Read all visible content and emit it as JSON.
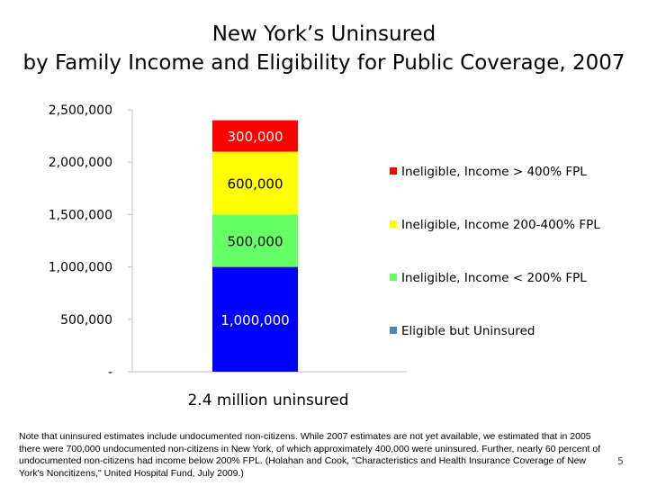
{
  "slide": {
    "title_line1": "New York’s Uninsured",
    "title_line2": "by Family Income and Eligibility for Public Coverage, 2007",
    "note": "Note that uninsured estimates include undocumented non-citizens.  While 2007 estimates are not yet available, we estimated that in 2005 there were 700,000 undocumented non-citizens in New York, of which approximately 400,000 were uninsured.  Further, nearly 60 percent of undocumented non-citizens had income below 200% FPL.  (Holahan and Cook, \"Characteristics and Health Insurance Coverage of New York's Noncitizens,\" United Hospital Fund, July 2009.)",
    "page_number": "5"
  },
  "chart_data": {
    "type": "bar",
    "stacked": true,
    "categories": [
      "2.4 million uninsured"
    ],
    "xlabel": "2.4 million uninsured",
    "ylabel": "",
    "ylim": [
      0,
      2500000
    ],
    "y_ticks": [
      {
        "value": 0,
        "label": "-"
      },
      {
        "value": 500000,
        "label": "500,000"
      },
      {
        "value": 1000000,
        "label": "1,000,000"
      },
      {
        "value": 1500000,
        "label": "1,500,000"
      },
      {
        "value": 2000000,
        "label": "2,000,000"
      },
      {
        "value": 2500000,
        "label": "2,500,000"
      }
    ],
    "series": [
      {
        "name": "Eligible but Uninsured",
        "values": [
          1000000
        ],
        "label": "1,000,000",
        "color": "#0000ff",
        "legend_color": "#4f81bd",
        "label_color": "#ffffff"
      },
      {
        "name": "Ineligible, Income < 200% FPL",
        "values": [
          500000
        ],
        "label": "500,000",
        "color": "#66ff66",
        "legend_color": "#66ff66",
        "label_color": "#000000"
      },
      {
        "name": "Ineligible, Income 200-400% FPL",
        "values": [
          600000
        ],
        "label": "600,000",
        "color": "#ffff00",
        "legend_color": "#ffff00",
        "label_color": "#000000"
      },
      {
        "name": "Ineligible, Income > 400% FPL",
        "values": [
          300000
        ],
        "label": "300,000",
        "color": "#ff0000",
        "legend_color": "#ff0000",
        "label_color": "#ffffff"
      }
    ],
    "legend_order": [
      "Ineligible, Income > 400% FPL",
      "Ineligible, Income 200-400% FPL",
      "Ineligible, Income < 200% FPL",
      "Eligible but Uninsured"
    ],
    "legend_position": "right",
    "grid": false
  }
}
